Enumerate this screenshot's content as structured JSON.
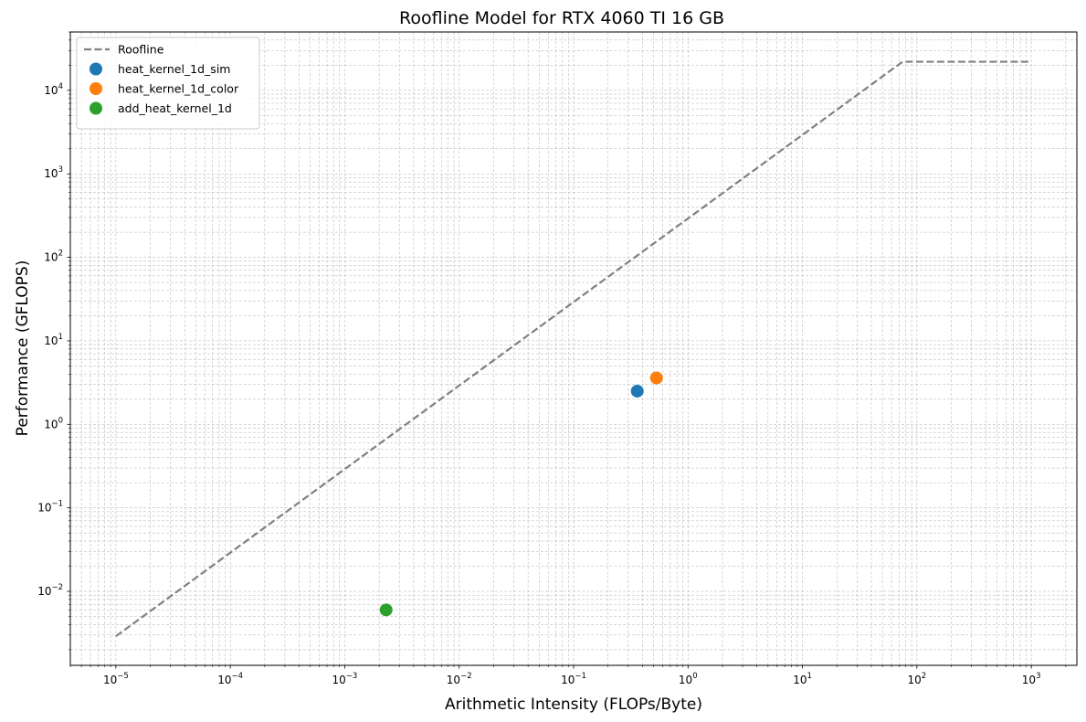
{
  "chart_data": {
    "type": "scatter",
    "title": "Roofline Model for RTX 4060 TI 16 GB",
    "xlabel": "Arithmetic Intensity (FLOPs/Byte)",
    "ylabel": "Performance (GFLOPS)",
    "xscale": "log",
    "yscale": "log",
    "xlim": [
      4e-06,
      2500
    ],
    "ylim": [
      0.0013,
      50000
    ],
    "x_tick_exponents": [
      -5,
      -4,
      -3,
      -2,
      -1,
      0,
      1,
      2,
      3
    ],
    "y_tick_exponents": [
      -2,
      -1,
      0,
      1,
      2,
      3,
      4
    ],
    "grid": true,
    "legend_position": "upper-left",
    "roofline": {
      "name": "Roofline",
      "color": "#808080",
      "style": "dashed",
      "points": [
        {
          "x": 1e-05,
          "y": 0.0029
        },
        {
          "x": 75,
          "y": 22000
        },
        {
          "x": 1000,
          "y": 22000
        }
      ]
    },
    "series": [
      {
        "name": "heat_kernel_1d_sim",
        "color": "#1f77b4",
        "points": [
          {
            "x": 0.36,
            "y": 2.5
          }
        ]
      },
      {
        "name": "heat_kernel_1d_color",
        "color": "#ff7f0e",
        "points": [
          {
            "x": 0.53,
            "y": 3.6
          }
        ]
      },
      {
        "name": "add_heat_kernel_1d",
        "color": "#2ca02c",
        "points": [
          {
            "x": 0.0023,
            "y": 0.006
          }
        ]
      }
    ]
  }
}
